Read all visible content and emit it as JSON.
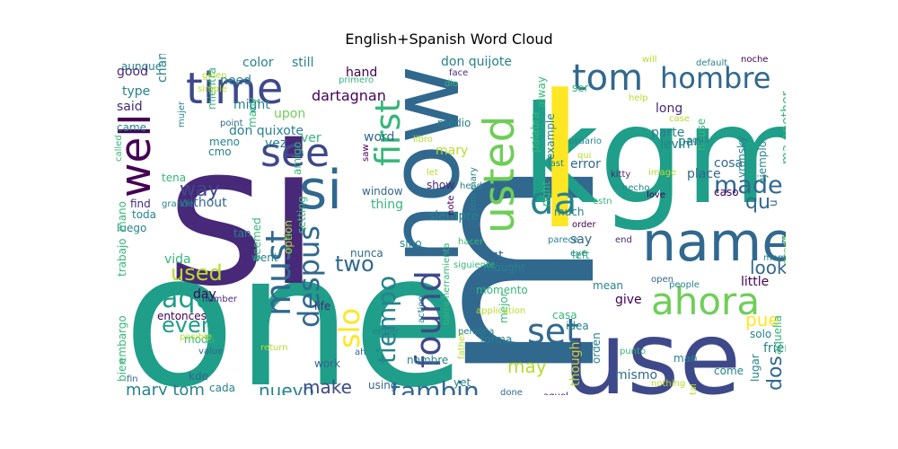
{
  "title": "English+Spanish Word Cloud",
  "palette": [
    "#440154",
    "#482878",
    "#3e4989",
    "#31688e",
    "#26828e",
    "#1f9e89",
    "#35b779",
    "#6ece58",
    "#b5de2b",
    "#fde725"
  ],
  "words": [
    {
      "text": "one",
      "color": "#1f9e89"
    },
    {
      "text": "si",
      "color": "#482878"
    },
    {
      "text": "m",
      "color": "#31688e"
    },
    {
      "text": "use",
      "color": "#3e4989"
    },
    {
      "text": "kgm",
      "color": "#1f9e89"
    },
    {
      "text": "l",
      "color": "#fde725"
    },
    {
      "text": "now",
      "color": "#31688e"
    },
    {
      "text": "name",
      "color": "#31688e"
    },
    {
      "text": "time",
      "color": "#3e4989"
    },
    {
      "text": "well",
      "color": "#440154"
    },
    {
      "text": "see",
      "color": "#3e4989"
    },
    {
      "text": "si",
      "color": "#31688e"
    },
    {
      "text": "tom",
      "color": "#31688e"
    },
    {
      "text": "hombre",
      "color": "#31688e"
    },
    {
      "text": "first",
      "color": "#35b779"
    },
    {
      "text": "usted",
      "color": "#6ece58"
    },
    {
      "text": "da",
      "color": "#26828e"
    },
    {
      "text": "found",
      "color": "#3e4989"
    },
    {
      "text": "ahora",
      "color": "#6ece58"
    },
    {
      "text": "set",
      "color": "#31688e"
    },
    {
      "text": "must",
      "color": "#31688e"
    },
    {
      "text": "despus",
      "color": "#31688e"
    },
    {
      "text": "slo",
      "color": "#fde725"
    },
    {
      "text": "tiempo",
      "color": "#26828e"
    },
    {
      "text": "made",
      "color": "#31688e"
    },
    {
      "text": "tambin",
      "color": "#31688e"
    },
    {
      "text": "aqu",
      "color": "#1f9e89"
    },
    {
      "text": "used",
      "color": "#b5de2b"
    },
    {
      "text": "two",
      "color": "#31688e"
    },
    {
      "text": "way",
      "color": "#3e4989"
    },
    {
      "text": "even",
      "color": "#1f9e89"
    },
    {
      "text": "mary tom",
      "color": "#26828e"
    },
    {
      "text": "nuevo",
      "color": "#26828e"
    },
    {
      "text": "make",
      "color": "#3e4989"
    },
    {
      "text": "pue",
      "color": "#fde725"
    },
    {
      "text": "look",
      "color": "#31688e"
    },
    {
      "text": "qu",
      "color": "#31688e"
    },
    {
      "text": "may",
      "color": "#b5de2b"
    },
    {
      "text": "dos",
      "color": "#31688e"
    },
    {
      "text": "don quixote",
      "color": "#26828e"
    },
    {
      "text": "don quijote",
      "color": "#26828e"
    },
    {
      "text": "dartagnan",
      "color": "#440154"
    },
    {
      "text": "color",
      "color": "#26828e"
    },
    {
      "text": "still",
      "color": "#26828e"
    },
    {
      "text": "hand",
      "color": "#440154"
    },
    {
      "text": "aunque",
      "color": "#26828e"
    },
    {
      "text": "good",
      "color": "#482878"
    },
    {
      "text": "said",
      "color": "#482878"
    },
    {
      "text": "type",
      "color": "#26828e"
    },
    {
      "text": "came",
      "color": "#26828e"
    },
    {
      "text": "need",
      "color": "#26828e"
    },
    {
      "text": "might",
      "color": "#26828e"
    },
    {
      "text": "upon",
      "color": "#6ece58"
    },
    {
      "text": "many",
      "color": "#35b779"
    },
    {
      "text": "meno",
      "color": "#26828e"
    },
    {
      "text": "cmo",
      "color": "#26828e"
    },
    {
      "text": "vez",
      "color": "#26828e"
    },
    {
      "text": "ver",
      "color": "#35b779"
    },
    {
      "text": "amigo",
      "color": "#35b779"
    },
    {
      "text": "tena",
      "color": "#35b779"
    },
    {
      "text": "without",
      "color": "#31688e"
    },
    {
      "text": "find",
      "color": "#482878"
    },
    {
      "text": "toda",
      "color": "#26828e"
    },
    {
      "text": "luego",
      "color": "#26828e"
    },
    {
      "text": "word",
      "color": "#31688e"
    },
    {
      "text": "window",
      "color": "#31688e"
    },
    {
      "text": "thing",
      "color": "#35b779"
    },
    {
      "text": "show",
      "color": "#482878"
    },
    {
      "text": "siempre",
      "color": "#26828e"
    },
    {
      "text": "medio",
      "color": "#26828e"
    },
    {
      "text": "mary",
      "color": "#b5de2b"
    },
    {
      "text": "palabra",
      "color": "#35b779"
    },
    {
      "text": "alway",
      "color": "#35b779"
    },
    {
      "text": "right",
      "color": "#35b779"
    },
    {
      "text": "example",
      "color": "#26828e"
    },
    {
      "text": "much",
      "color": "#26828e"
    },
    {
      "text": "ser",
      "color": "#35b779"
    },
    {
      "text": "long",
      "color": "#482878"
    },
    {
      "text": "parte",
      "color": "#26828e"
    },
    {
      "text": "part",
      "color": "#26828e"
    },
    {
      "text": "error",
      "color": "#31688e"
    },
    {
      "text": "levin",
      "color": "#26828e"
    },
    {
      "text": "house",
      "color": "#35b779"
    },
    {
      "text": "place",
      "color": "#31688e"
    },
    {
      "text": "cosa",
      "color": "#31688e"
    },
    {
      "text": "caso",
      "color": "#440154"
    },
    {
      "text": "vronsky",
      "color": "#26828e"
    },
    {
      "text": "ejemplo",
      "color": "#26828e"
    },
    {
      "text": "ma another",
      "color": "#35b779"
    },
    {
      "text": "u",
      "color": "#31688e"
    },
    {
      "text": "padre",
      "color": "#26828e"
    },
    {
      "text": "mundo",
      "color": "#26828e"
    },
    {
      "text": "great",
      "color": "#6ece58"
    },
    {
      "text": "say",
      "color": "#31688e"
    },
    {
      "text": "left",
      "color": "#35b779"
    },
    {
      "text": "list",
      "color": "#31688e"
    },
    {
      "text": "thought",
      "color": "#26828e"
    },
    {
      "text": "momento",
      "color": "#35b779"
    },
    {
      "text": "sino",
      "color": "#26828e"
    },
    {
      "text": "nunca",
      "color": "#31688e"
    },
    {
      "text": "went",
      "color": "#26828e"
    },
    {
      "text": "life",
      "color": "#482878"
    },
    {
      "text": "tan",
      "color": "#26828e"
    },
    {
      "text": "vida",
      "color": "#35b779"
    },
    {
      "text": "day",
      "color": "#440154"
    },
    {
      "text": "entonces",
      "color": "#440154"
    },
    {
      "text": "modo",
      "color": "#35b779"
    },
    {
      "text": "work",
      "color": "#31688e"
    },
    {
      "text": "kde",
      "color": "#31688e"
    },
    {
      "text": "cada",
      "color": "#26828e"
    },
    {
      "text": "using",
      "color": "#31688e"
    },
    {
      "text": "nombre",
      "color": "#26828e"
    },
    {
      "text": "yet",
      "color": "#26828e"
    },
    {
      "text": "mejor",
      "color": "#35b779"
    },
    {
      "text": "casa",
      "color": "#35b779"
    },
    {
      "text": "mean",
      "color": "#26828e"
    },
    {
      "text": "give",
      "color": "#440154"
    },
    {
      "text": "idea",
      "color": "#26828e"
    },
    {
      "text": "forma",
      "color": "#26828e"
    },
    {
      "text": "orden",
      "color": "#26828e"
    },
    {
      "text": "though",
      "color": "#b5de2b"
    },
    {
      "text": "little",
      "color": "#440154"
    },
    {
      "text": "solo",
      "color": "#26828e"
    },
    {
      "text": "friend",
      "color": "#26828e"
    },
    {
      "text": "aquella",
      "color": "#35b779"
    },
    {
      "text": "lugar",
      "color": "#26828e"
    },
    {
      "text": "come",
      "color": "#26828e"
    },
    {
      "text": "man",
      "color": "#26828e"
    },
    {
      "text": "mismo",
      "color": "#31688e"
    },
    {
      "text": "cuenta",
      "color": "#26828e"
    },
    {
      "text": "trabajo",
      "color": "#35b779"
    },
    {
      "text": "embargo",
      "color": "#35b779"
    },
    {
      "text": "bien",
      "color": "#35b779"
    },
    {
      "text": "mano",
      "color": "#35b779"
    },
    {
      "text": "change",
      "color": "#26828e"
    },
    {
      "text": "mientra",
      "color": "#35b779"
    },
    {
      "text": "given",
      "color": "#b5de2b"
    },
    {
      "text": "simple",
      "color": "#b5de2b"
    },
    {
      "text": "point",
      "color": "#31688e"
    },
    {
      "text": "mujer",
      "color": "#26828e"
    },
    {
      "text": "called",
      "color": "#35b779"
    },
    {
      "text": "grande",
      "color": "#26828e"
    },
    {
      "text": "seemed",
      "color": "#35b779"
    },
    {
      "text": "option",
      "color": "#b5de2b"
    },
    {
      "text": "setting",
      "color": "#35b779"
    },
    {
      "text": "primero",
      "color": "#35b779"
    },
    {
      "text": "saw",
      "color": "#440154"
    },
    {
      "text": "dio",
      "color": "#35b779"
    },
    {
      "text": "face",
      "color": "#482878"
    },
    {
      "text": "libro",
      "color": "#b5de2b"
    },
    {
      "text": "let",
      "color": "#b5de2b"
    },
    {
      "text": "note",
      "color": "#440154"
    },
    {
      "text": "head",
      "color": "#26828e"
    },
    {
      "text": "tom mary",
      "color": "#26828e"
    },
    {
      "text": "hacer",
      "color": "#35b779"
    },
    {
      "text": "siguiente",
      "color": "#35b779"
    },
    {
      "text": "will",
      "color": "#b5de2b"
    },
    {
      "text": "help",
      "color": "#b5de2b"
    },
    {
      "text": "default",
      "color": "#26828e"
    },
    {
      "text": "noche",
      "color": "#440154"
    },
    {
      "text": "case",
      "color": "#b5de2b"
    },
    {
      "text": "usuario",
      "color": "#26828e"
    },
    {
      "text": "agua",
      "color": "#26828e"
    },
    {
      "text": "qui",
      "color": "#b5de2b"
    },
    {
      "text": "last",
      "color": "#26828e"
    },
    {
      "text": "ojo",
      "color": "#440154"
    },
    {
      "text": "kitty",
      "color": "#482878"
    },
    {
      "text": "image",
      "color": "#b5de2b"
    },
    {
      "text": "love",
      "color": "#440154"
    },
    {
      "text": "hecho",
      "color": "#26828e"
    },
    {
      "text": "estn",
      "color": "#35b779"
    },
    {
      "text": "order",
      "color": "#440154"
    },
    {
      "text": "parece",
      "color": "#26828e"
    },
    {
      "text": "end",
      "color": "#482878"
    },
    {
      "text": "eye",
      "color": "#26828e"
    },
    {
      "text": "open",
      "color": "#31688e"
    },
    {
      "text": "people",
      "color": "#26828e"
    },
    {
      "text": "moment",
      "color": "#26828e"
    },
    {
      "text": "application",
      "color": "#b5de2b"
    },
    {
      "text": "action",
      "color": "#26828e"
    },
    {
      "text": "persona",
      "color": "#26828e"
    },
    {
      "text": "father",
      "color": "#b5de2b"
    },
    {
      "text": "barra herramienta",
      "color": "#35b779"
    },
    {
      "text": "punto",
      "color": "#35b779"
    },
    {
      "text": "either",
      "color": "#26828e"
    },
    {
      "text": "ah",
      "color": "#31688e"
    },
    {
      "text": "done",
      "color": "#31688e"
    },
    {
      "text": "aquel",
      "color": "#440154"
    },
    {
      "text": "return",
      "color": "#b5de2b"
    },
    {
      "text": "posible",
      "color": "#b5de2b"
    },
    {
      "text": "value",
      "color": "#31688e"
    },
    {
      "text": "number",
      "color": "#482878"
    },
    {
      "text": "fin",
      "color": "#31688e"
    },
    {
      "text": "tal",
      "color": "#b5de2b"
    },
    {
      "text": "nothing",
      "color": "#b5de2b"
    },
    {
      "text": "support",
      "color": "#26828e"
    },
    {
      "text": "nio",
      "color": "#31688e"
    },
    {
      "text": "think",
      "color": "#b5de2b"
    }
  ]
}
